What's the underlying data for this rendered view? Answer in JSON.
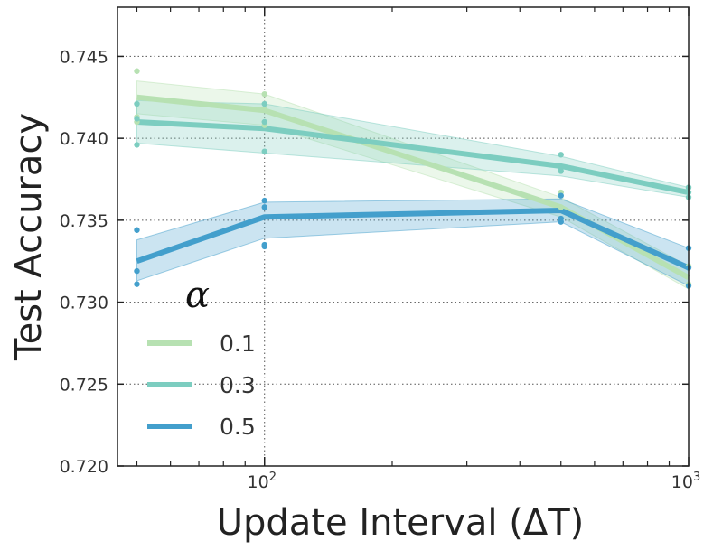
{
  "chart_data": {
    "type": "line",
    "x_scale": "log",
    "xlabel": "Update Interval (ΔT)",
    "ylabel": "Test Accuracy",
    "xlim": [
      45,
      1000
    ],
    "ylim": [
      0.72,
      0.748
    ],
    "y_ticks": [
      {
        "value": 0.72,
        "label": "0.720"
      },
      {
        "value": 0.725,
        "label": "0.725"
      },
      {
        "value": 0.73,
        "label": "0.730"
      },
      {
        "value": 0.735,
        "label": "0.735"
      },
      {
        "value": 0.74,
        "label": "0.740"
      },
      {
        "value": 0.745,
        "label": "0.745"
      }
    ],
    "x_ticks": [
      {
        "value": 100,
        "base": "10",
        "exp": "2"
      },
      {
        "value": 1000,
        "base": "10",
        "exp": "3"
      }
    ],
    "x_minor_ticks": [
      50,
      60,
      70,
      80,
      90,
      200,
      300,
      400,
      500,
      600,
      700,
      800,
      900
    ],
    "grid": true,
    "legend": {
      "title": "α",
      "position": "bottom-left"
    },
    "x": [
      50,
      100,
      500,
      1000
    ],
    "series": [
      {
        "name": "0.1",
        "color": "#b7e1b2",
        "values": [
          0.7425,
          0.7417,
          0.7358,
          0.7315
        ],
        "band_low": [
          0.7415,
          0.7408,
          0.7352,
          0.7308
        ],
        "band_high": [
          0.7435,
          0.7427,
          0.7364,
          0.7322
        ],
        "points": [
          [
            50,
            0.7441
          ],
          [
            50,
            0.7413
          ],
          [
            50,
            0.741
          ],
          [
            100,
            0.7427
          ],
          [
            100,
            0.7418
          ],
          [
            100,
            0.7408
          ],
          [
            500,
            0.7367
          ],
          [
            500,
            0.7358
          ],
          [
            1000,
            0.7322
          ],
          [
            1000,
            0.7311
          ]
        ]
      },
      {
        "name": "0.3",
        "color": "#7ccdc0",
        "values": [
          0.741,
          0.7406,
          0.7383,
          0.7367
        ],
        "band_low": [
          0.7397,
          0.7391,
          0.7377,
          0.7364
        ],
        "band_high": [
          0.7423,
          0.7421,
          0.7389,
          0.737
        ],
        "points": [
          [
            50,
            0.7421
          ],
          [
            50,
            0.7412
          ],
          [
            50,
            0.7396
          ],
          [
            100,
            0.7421
          ],
          [
            100,
            0.741
          ],
          [
            100,
            0.7392
          ],
          [
            500,
            0.739
          ],
          [
            500,
            0.7382
          ],
          [
            500,
            0.738
          ],
          [
            1000,
            0.737
          ],
          [
            1000,
            0.7367
          ],
          [
            1000,
            0.7364
          ]
        ]
      },
      {
        "name": "0.5",
        "color": "#439fcc",
        "values": [
          0.7325,
          0.7352,
          0.7356,
          0.7321
        ],
        "band_low": [
          0.7313,
          0.7339,
          0.7349,
          0.731
        ],
        "band_high": [
          0.7338,
          0.7361,
          0.7363,
          0.7333
        ],
        "points": [
          [
            50,
            0.7344
          ],
          [
            50,
            0.7319
          ],
          [
            50,
            0.7311
          ],
          [
            100,
            0.7362
          ],
          [
            100,
            0.7358
          ],
          [
            100,
            0.7335
          ],
          [
            100,
            0.7334
          ],
          [
            500,
            0.7365
          ],
          [
            500,
            0.7351
          ],
          [
            500,
            0.7349
          ],
          [
            1000,
            0.7333
          ],
          [
            1000,
            0.7321
          ],
          [
            1000,
            0.731
          ]
        ]
      }
    ]
  }
}
